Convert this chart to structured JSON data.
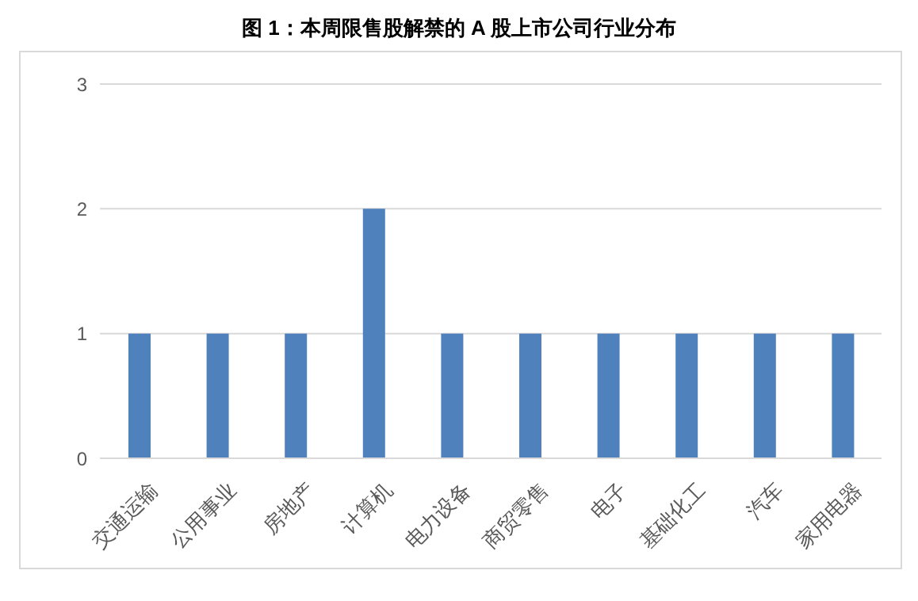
{
  "chart_data": {
    "type": "bar",
    "title": "图 1：本周限售股解禁的 A 股上市公司行业分布",
    "categories": [
      "交通运输",
      "公用事业",
      "房地产",
      "计算机",
      "电力设备",
      "商贸零售",
      "电子",
      "基础化工",
      "汽车",
      "家用电器"
    ],
    "values": [
      1,
      1,
      1,
      2,
      1,
      1,
      1,
      1,
      1,
      1
    ],
    "color": "#4f81bd",
    "ylim": [
      0,
      3
    ],
    "yticks": [
      0,
      1,
      2,
      3
    ],
    "grid": "y"
  }
}
